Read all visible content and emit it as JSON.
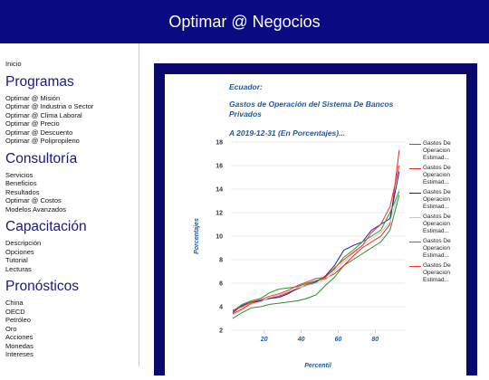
{
  "header": {
    "title": "Optimar @ Negocios"
  },
  "sidebar": {
    "home": "Inicio",
    "sections": [
      {
        "heading": "Programas",
        "links": [
          "Optimar @ Misión",
          "Optimar @ Industria o Sector",
          "Optimar @ Clima Laboral",
          "Optimar @ Precio",
          "Optimar @ Descuento",
          "Optimar @ Polipropileno"
        ]
      },
      {
        "heading": "Consultoría",
        "links": [
          "Servicios",
          "Beneficios",
          "Resultados",
          "Optimar @ Costos",
          "Modelos Avanzados"
        ]
      },
      {
        "heading": "Capacitación",
        "links": [
          "Descripción",
          "Opciones",
          "Tutorial",
          "Lecturas"
        ]
      },
      {
        "heading": "Pronósticos",
        "links": [
          "China",
          "OECD",
          "Petróleo",
          "Oro",
          "Acciones",
          "Monedas",
          "Intereses"
        ]
      }
    ]
  },
  "chart_data": {
    "type": "line",
    "title": [
      "Ecuador:",
      "Gastos de Operación del Sistema De Bancos",
      "Privados",
      "A 2019-12-31 (En Porcentajes)..."
    ],
    "y_label": "Porcentajes",
    "x_label": "Percentil",
    "x": [
      3,
      8,
      13,
      18,
      23,
      28,
      33,
      38,
      43,
      48,
      53,
      58,
      63,
      68,
      73,
      78,
      83,
      88,
      93
    ],
    "series": [
      {
        "name": "Gastos De Operacion Estimad...",
        "color": "#2e8b2e",
        "values": [
          3.0,
          3.5,
          3.9,
          4.0,
          4.2,
          4.3,
          4.4,
          4.5,
          4.7,
          5.0,
          5.8,
          6.5,
          7.5,
          8.0,
          8.5,
          9.0,
          9.5,
          10.5,
          13.5
        ]
      },
      {
        "name": "Gastos De Operacion Estimad...",
        "color": "#e8241c",
        "values": [
          3.4,
          3.8,
          4.3,
          4.5,
          4.7,
          4.9,
          5.2,
          5.5,
          5.9,
          6.2,
          6.4,
          6.8,
          7.5,
          8.3,
          9.0,
          9.5,
          10.0,
          11.0,
          17.3
        ]
      },
      {
        "name": "Gastos De Operacion Estimad...",
        "color": "#1c1ca0",
        "values": [
          3.5,
          4.1,
          4.4,
          4.5,
          4.7,
          4.8,
          5.1,
          5.6,
          5.8,
          6.1,
          6.6,
          7.5,
          8.8,
          9.2,
          9.5,
          10.5,
          11.0,
          11.5,
          15.5
        ]
      },
      {
        "name": "Gastos De Operacion Estimad...",
        "color": "#c8c8c8",
        "values": [
          3.3,
          3.7,
          4.2,
          4.4,
          4.8,
          5.0,
          5.3,
          5.6,
          5.8,
          6.0,
          6.3,
          7.0,
          7.8,
          8.5,
          9.2,
          9.8,
          10.3,
          11.2,
          14.0
        ]
      },
      {
        "name": "Gastos De Operacion Estimad...",
        "color": "#22a022",
        "values": [
          3.6,
          4.2,
          4.5,
          4.7,
          5.2,
          5.5,
          5.6,
          5.7,
          6.0,
          6.2,
          6.5,
          7.2,
          8.2,
          8.8,
          9.5,
          10.0,
          10.5,
          12.0,
          13.8
        ]
      },
      {
        "name": "Gastos De Operacion Estimad...",
        "color": "#ff3030",
        "values": [
          3.7,
          4.0,
          4.4,
          4.6,
          4.9,
          5.1,
          5.4,
          5.8,
          6.1,
          6.4,
          6.5,
          7.3,
          8.0,
          8.6,
          9.2,
          10.3,
          11.0,
          12.5,
          16.0
        ]
      }
    ],
    "xlim": [
      2,
      96
    ],
    "xticks": [
      20,
      40,
      60,
      80
    ],
    "ylim": [
      2,
      18
    ],
    "yticks": [
      2,
      4,
      6,
      8,
      10,
      12,
      14,
      16,
      18
    ],
    "grid": true,
    "legend": "right"
  }
}
